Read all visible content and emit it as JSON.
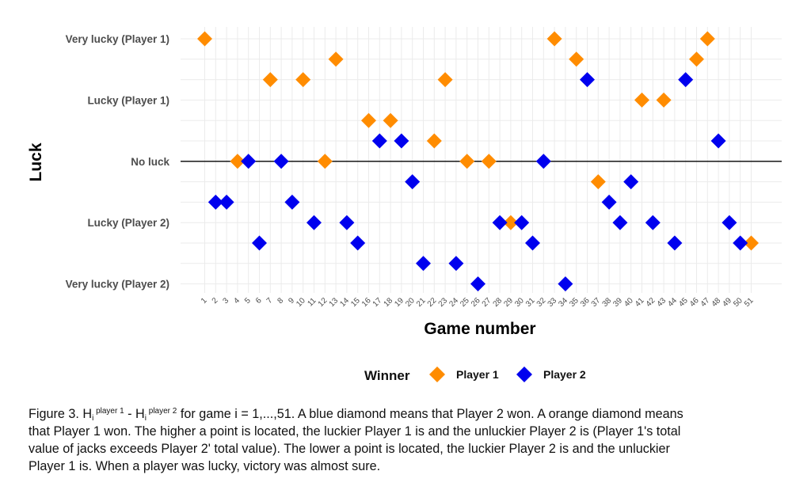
{
  "chart_data": {
    "type": "scatter",
    "xlabel": "Game number",
    "ylabel": "Luck",
    "xlim": [
      1,
      51
    ],
    "ylim": [
      -6,
      6
    ],
    "x_ticks": [
      "1",
      "2",
      "3",
      "4",
      "5",
      "6",
      "7",
      "8",
      "9",
      "10",
      "11",
      "12",
      "13",
      "14",
      "15",
      "16",
      "17",
      "18",
      "19",
      "20",
      "21",
      "22",
      "23",
      "24",
      "25",
      "26",
      "27",
      "28",
      "29",
      "30",
      "31",
      "32",
      "33",
      "34",
      "35",
      "36",
      "37",
      "38",
      "39",
      "40",
      "41",
      "42",
      "43",
      "44",
      "45",
      "46",
      "47",
      "48",
      "49",
      "50",
      "51"
    ],
    "y_ticks": [
      {
        "value": 6,
        "label": "Very lucky (Player 1)"
      },
      {
        "value": 3,
        "label": "Lucky (Player 1)"
      },
      {
        "value": 0,
        "label": "No luck"
      },
      {
        "value": -3,
        "label": "Lucky (Player 2)"
      },
      {
        "value": -6,
        "label": "Very lucky (Player 2)"
      }
    ],
    "hline_at": 0,
    "grid": true,
    "legend": {
      "title": "Winner",
      "position": "bottom"
    },
    "series": [
      {
        "name": "Player 1",
        "color": "#ff8c00",
        "marker": "diamond",
        "points": [
          {
            "x": 1,
            "y": 6
          },
          {
            "x": 4,
            "y": 0
          },
          {
            "x": 7,
            "y": 4
          },
          {
            "x": 10,
            "y": 4
          },
          {
            "x": 12,
            "y": 0
          },
          {
            "x": 13,
            "y": 5
          },
          {
            "x": 16,
            "y": 2
          },
          {
            "x": 18,
            "y": 2
          },
          {
            "x": 22,
            "y": 1
          },
          {
            "x": 23,
            "y": 4
          },
          {
            "x": 25,
            "y": 0
          },
          {
            "x": 27,
            "y": 0
          },
          {
            "x": 29,
            "y": -3
          },
          {
            "x": 33,
            "y": 6
          },
          {
            "x": 35,
            "y": 5
          },
          {
            "x": 37,
            "y": -1
          },
          {
            "x": 41,
            "y": 3
          },
          {
            "x": 43,
            "y": 3
          },
          {
            "x": 46,
            "y": 5
          },
          {
            "x": 47,
            "y": 6
          },
          {
            "x": 51,
            "y": -4
          }
        ]
      },
      {
        "name": "Player 2",
        "color": "#0000ee",
        "marker": "diamond",
        "points": [
          {
            "x": 2,
            "y": -2
          },
          {
            "x": 3,
            "y": -2
          },
          {
            "x": 5,
            "y": 0
          },
          {
            "x": 6,
            "y": -4
          },
          {
            "x": 8,
            "y": 0
          },
          {
            "x": 9,
            "y": -2
          },
          {
            "x": 11,
            "y": -3
          },
          {
            "x": 14,
            "y": -3
          },
          {
            "x": 15,
            "y": -4
          },
          {
            "x": 17,
            "y": 1
          },
          {
            "x": 19,
            "y": 1
          },
          {
            "x": 20,
            "y": -1
          },
          {
            "x": 21,
            "y": -5
          },
          {
            "x": 24,
            "y": -5
          },
          {
            "x": 26,
            "y": -6
          },
          {
            "x": 28,
            "y": -3
          },
          {
            "x": 30,
            "y": -3
          },
          {
            "x": 31,
            "y": -4
          },
          {
            "x": 32,
            "y": 0
          },
          {
            "x": 34,
            "y": -6
          },
          {
            "x": 36,
            "y": 4
          },
          {
            "x": 38,
            "y": -2
          },
          {
            "x": 39,
            "y": -3
          },
          {
            "x": 40,
            "y": -1
          },
          {
            "x": 42,
            "y": -3
          },
          {
            "x": 44,
            "y": -4
          },
          {
            "x": 45,
            "y": 4
          },
          {
            "x": 48,
            "y": 1
          },
          {
            "x": 49,
            "y": -3
          },
          {
            "x": 50,
            "y": -4
          }
        ]
      }
    ]
  },
  "caption": {
    "prefix": "Figure 3. H",
    "sub_i_1": "i",
    "sup_1": " player 1",
    "minus": " - H",
    "sub_i_2": "i",
    "sup_2": " player 2",
    "line1_rest": " for game i = 1,...,51. A blue diamond means that Player 2 won. A orange diamond means",
    "line2": "that Player 1 won. The higher a point is located, the luckier Player 1 is and the unluckier Player 2 is (Player 1's total",
    "line3": "value of jacks exceeds Player 2' total value). The lower a point is located, the luckier Player 2 is and the unluckier",
    "line4": "Player 1 is. When a player was lucky, victory was almost sure."
  }
}
